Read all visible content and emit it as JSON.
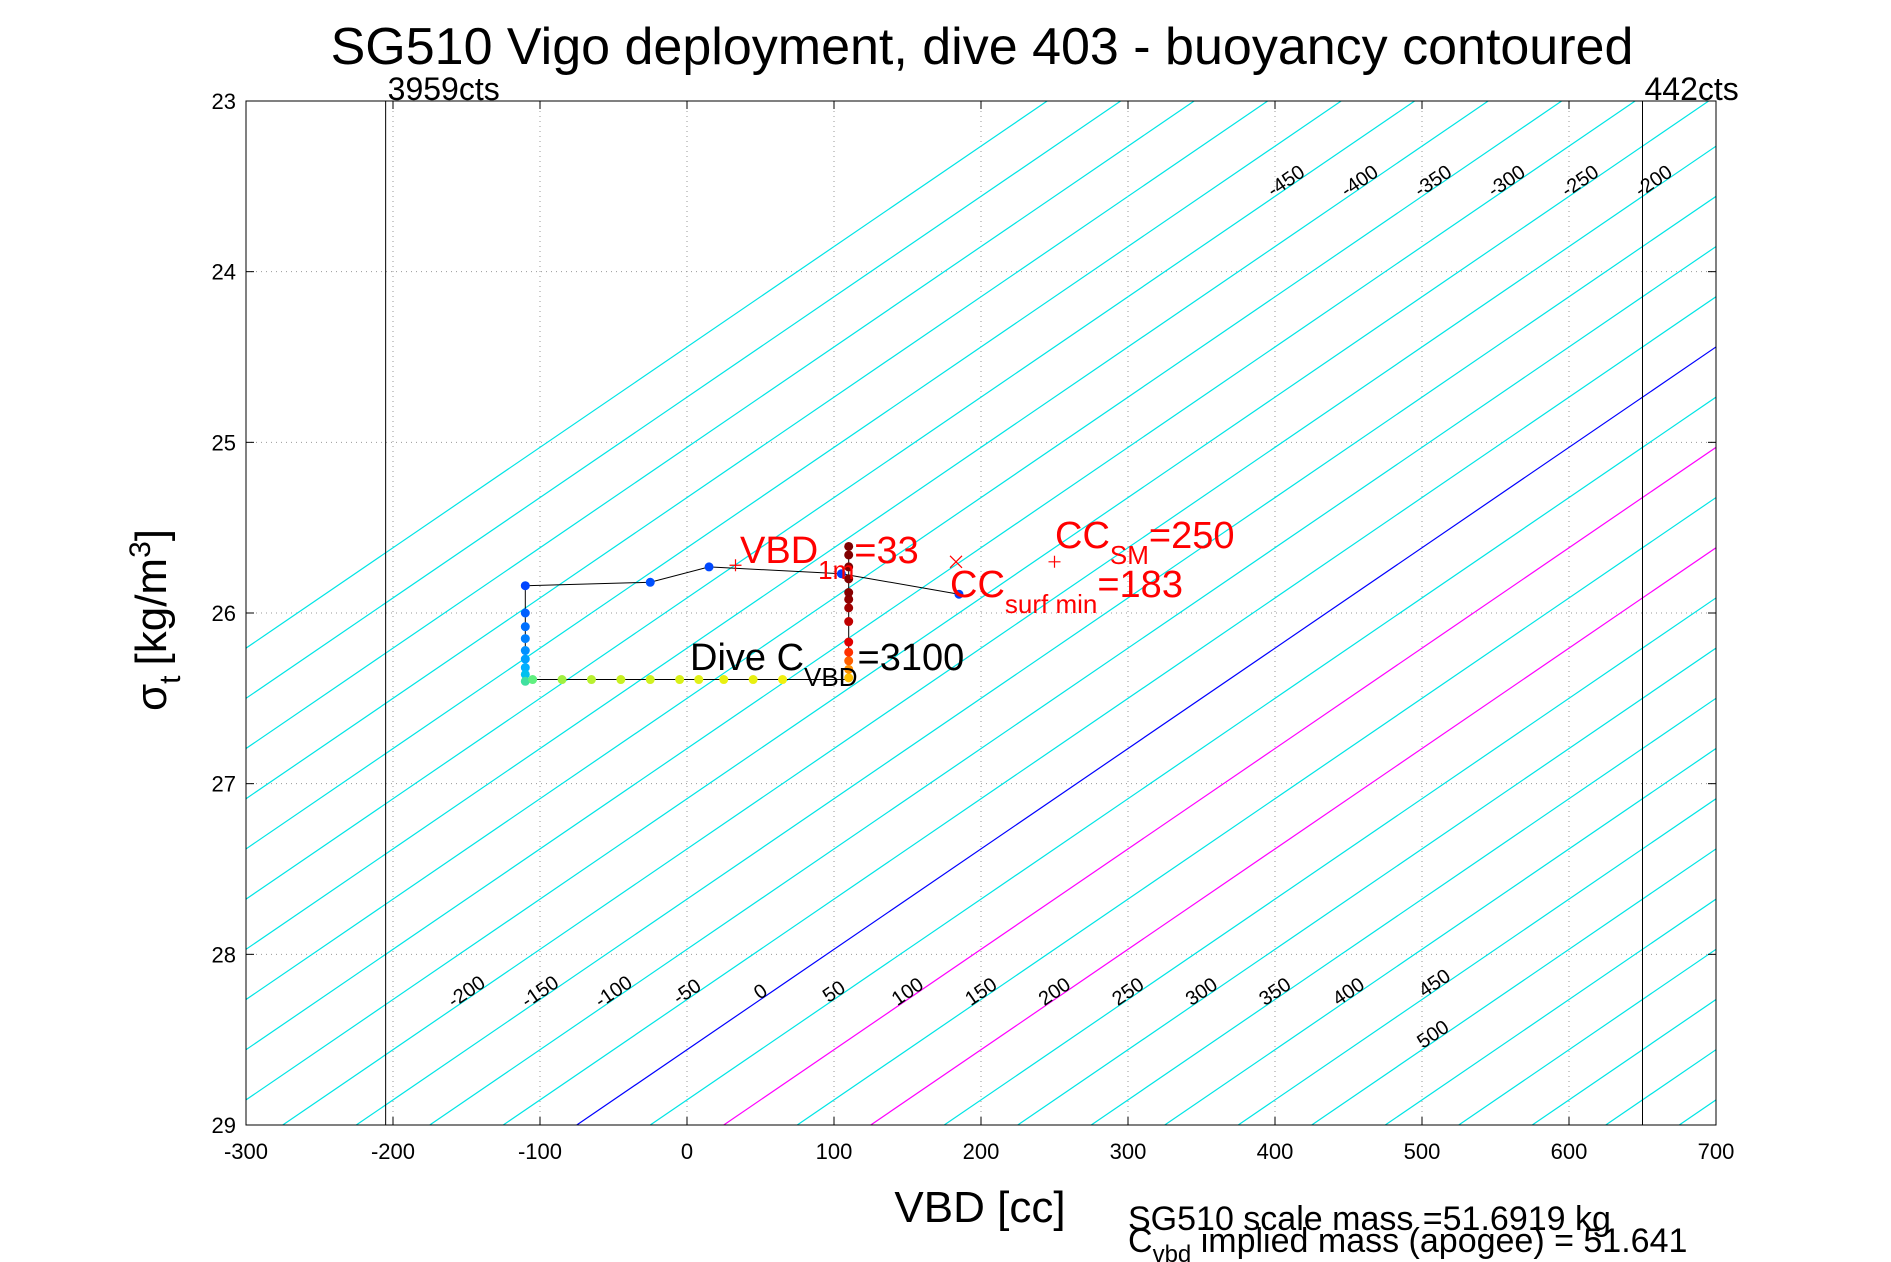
{
  "chart_data": {
    "type": "scatter",
    "title": "SG510 Vigo deployment, dive 403 - buoyancy contoured",
    "xlabel": "VBD [cc]",
    "ylabel_main": "σ",
    "ylabel_sub": "t",
    "ylabel_rest": "[kg/m",
    "ylabel_sup": "3",
    "ylabel_close": "]",
    "xlim": [
      -300,
      700
    ],
    "ylim": [
      23,
      29
    ],
    "y_reversed": true,
    "grid": true,
    "xticks": [
      -300,
      -200,
      -100,
      0,
      100,
      200,
      300,
      400,
      500,
      600,
      700
    ],
    "yticks": [
      23,
      24,
      25,
      26,
      27,
      28,
      29
    ],
    "contours": {
      "levels": [
        -450,
        -400,
        -350,
        -300,
        -250,
        -200,
        -150,
        -100,
        -50,
        0,
        50,
        100,
        150,
        200,
        250,
        300,
        350,
        400,
        450,
        500
      ],
      "slope_cc_per_sigma": 170,
      "ref_vbd_at_sigma29_for_zero": -75,
      "colors": {
        "default": "#00e5e5",
        "zero": "#0000ff",
        "highlight": "#ff00ff"
      },
      "highlight_levels": [
        100,
        200
      ],
      "top_labels": [
        {
          "level": -450,
          "text": "-450"
        },
        {
          "level": -400,
          "text": "-400"
        },
        {
          "level": -350,
          "text": "-350"
        },
        {
          "level": -300,
          "text": "-300"
        },
        {
          "level": -250,
          "text": "-250"
        },
        {
          "level": -200,
          "text": "-200"
        },
        {
          "level": -150,
          "text": "-150"
        },
        {
          "level": -100,
          "text": "-100"
        },
        {
          "level": -50,
          "text": "-50"
        },
        {
          "level": 0,
          "text": "0"
        },
        {
          "level": 50,
          "text": "50"
        },
        {
          "level": 100,
          "text": "100"
        },
        {
          "level": 150,
          "text": "150"
        },
        {
          "level": 200,
          "text": "200"
        },
        {
          "level": 250,
          "text": "250"
        },
        {
          "level": 300,
          "text": "300"
        },
        {
          "level": 350,
          "text": "350"
        },
        {
          "level": 400,
          "text": "400"
        },
        {
          "level": 450,
          "text": "450"
        },
        {
          "level": 500,
          "text": "500"
        }
      ],
      "bottom_labels": [
        {
          "level": -200,
          "text": "-200"
        },
        {
          "level": -150,
          "text": "-150"
        },
        {
          "level": -100,
          "text": "-100"
        },
        {
          "level": -50,
          "text": "-50"
        },
        {
          "level": 0,
          "text": "0"
        },
        {
          "level": 50,
          "text": "50"
        },
        {
          "level": 100,
          "text": "100"
        },
        {
          "level": 150,
          "text": "150"
        },
        {
          "level": 200,
          "text": "200"
        },
        {
          "level": 250,
          "text": "250"
        },
        {
          "level": 300,
          "text": "300"
        },
        {
          "level": 350,
          "text": "350"
        },
        {
          "level": 400,
          "text": "400"
        },
        {
          "level": 450,
          "text": "450"
        },
        {
          "level": 500,
          "text": "500"
        }
      ]
    },
    "limit_lines": [
      {
        "vbd": -205,
        "label": "3959cts"
      },
      {
        "vbd": 650,
        "label": "442cts"
      }
    ],
    "dive_path": [
      {
        "vbd": -110,
        "sigma": 25.84
      },
      {
        "vbd": -25,
        "sigma": 25.82
      },
      {
        "vbd": 15,
        "sigma": 25.73
      },
      {
        "vbd": 105,
        "sigma": 25.77
      },
      {
        "vbd": 185,
        "sigma": 25.89
      }
    ],
    "dive_points": [
      {
        "vbd": -110,
        "sigma": 25.84,
        "color": "#0044ff"
      },
      {
        "vbd": -25,
        "sigma": 25.82,
        "color": "#0050ff"
      },
      {
        "vbd": 15,
        "sigma": 25.73,
        "color": "#0048ff"
      },
      {
        "vbd": 105,
        "sigma": 25.77,
        "color": "#0040ff"
      },
      {
        "vbd": 185,
        "sigma": 25.89,
        "color": "#0040ff"
      },
      {
        "vbd": -110,
        "sigma": 26.0,
        "color": "#0060ff"
      },
      {
        "vbd": -110,
        "sigma": 26.08,
        "color": "#0070ff"
      },
      {
        "vbd": -110,
        "sigma": 26.15,
        "color": "#0080ff"
      },
      {
        "vbd": -110,
        "sigma": 26.22,
        "color": "#0090ff"
      },
      {
        "vbd": -110,
        "sigma": 26.27,
        "color": "#00a0ff"
      },
      {
        "vbd": -110,
        "sigma": 26.32,
        "color": "#00b0ff"
      },
      {
        "vbd": -110,
        "sigma": 26.36,
        "color": "#00c0f0"
      },
      {
        "vbd": -110,
        "sigma": 26.4,
        "color": "#40e0a0"
      },
      {
        "vbd": -105,
        "sigma": 26.39,
        "color": "#60f080"
      },
      {
        "vbd": -85,
        "sigma": 26.39,
        "color": "#a0f040"
      },
      {
        "vbd": -65,
        "sigma": 26.39,
        "color": "#b8f030"
      },
      {
        "vbd": -45,
        "sigma": 26.39,
        "color": "#c8f020"
      },
      {
        "vbd": -25,
        "sigma": 26.39,
        "color": "#d0f020"
      },
      {
        "vbd": -5,
        "sigma": 26.39,
        "color": "#d8f018"
      },
      {
        "vbd": 8,
        "sigma": 26.39,
        "color": "#e0f018"
      },
      {
        "vbd": 25,
        "sigma": 26.39,
        "color": "#e8f010"
      },
      {
        "vbd": 45,
        "sigma": 26.39,
        "color": "#e8f010"
      },
      {
        "vbd": 65,
        "sigma": 26.39,
        "color": "#f0f010"
      },
      {
        "vbd": 110,
        "sigma": 26.38,
        "color": "#ffc000"
      },
      {
        "vbd": 110,
        "sigma": 26.33,
        "color": "#ff9000"
      },
      {
        "vbd": 110,
        "sigma": 26.28,
        "color": "#ff6000"
      },
      {
        "vbd": 110,
        "sigma": 26.23,
        "color": "#ff3000"
      },
      {
        "vbd": 110,
        "sigma": 26.17,
        "color": "#e00000"
      },
      {
        "vbd": 110,
        "sigma": 26.05,
        "color": "#c00000"
      },
      {
        "vbd": 110,
        "sigma": 25.97,
        "color": "#a00000"
      },
      {
        "vbd": 110,
        "sigma": 25.92,
        "color": "#900000"
      },
      {
        "vbd": 110,
        "sigma": 25.88,
        "color": "#880000"
      },
      {
        "vbd": 110,
        "sigma": 25.8,
        "color": "#800000"
      },
      {
        "vbd": 110,
        "sigma": 25.73,
        "color": "#800000"
      },
      {
        "vbd": 110,
        "sigma": 25.66,
        "color": "#800000"
      },
      {
        "vbd": 110,
        "sigma": 25.61,
        "color": "#800000"
      }
    ],
    "markers": [
      {
        "type": "plus",
        "vbd": 33,
        "sigma": 25.72,
        "color": "#ff0000"
      },
      {
        "type": "x",
        "vbd": 183,
        "sigma": 25.7,
        "color": "#ff0000"
      },
      {
        "type": "plus",
        "vbd": 250,
        "sigma": 25.7,
        "color": "#ff0000"
      }
    ],
    "annotations": {
      "vbd1m": {
        "main": "VBD",
        "sub": "1m",
        "rest": "=33"
      },
      "ccsm": {
        "main": "CC",
        "sub": "SM",
        "rest": "=250"
      },
      "ccsurf": {
        "main": "CC",
        "sub": "surf min",
        "rest": "=183"
      },
      "divec": {
        "main": "Dive C",
        "sub": "VBD",
        "rest": "=3100"
      }
    },
    "footer": {
      "line1": "SG510 scale mass =51.6919 kg",
      "line2_main": "C",
      "line2_sub": "vbd",
      "line2_rest": " implied mass (apogee) = 51.641"
    }
  }
}
